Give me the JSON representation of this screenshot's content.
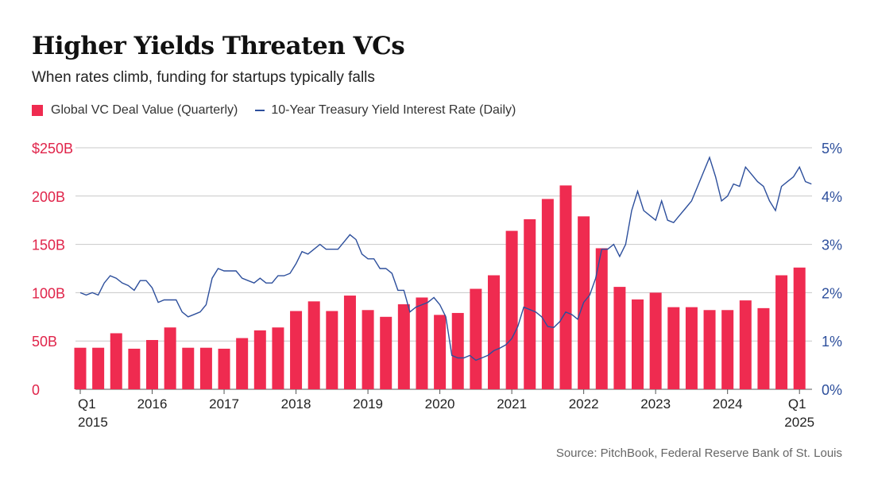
{
  "title": "Higher Yields Threaten VCs",
  "subtitle": "When rates climb, funding for startups typically falls",
  "source": "Source: PitchBook, Federal Reserve Bank of St. Louis",
  "colors": {
    "bar": "#ef2b50",
    "line": "#2d4f9c",
    "grid": "#c8c8c8",
    "left_axis": "#e0244a",
    "right_axis": "#2d4f9c"
  },
  "chart_data": {
    "type": "bar+line",
    "title": "Higher Yields Threaten VCs",
    "legend": [
      "Global VC Deal Value (Quarterly)",
      "10-Year Treasury Yield Interest Rate (Daily)"
    ],
    "legend_position": "top-left",
    "grid": true,
    "left_axis": {
      "ticks": [
        "0",
        "50B",
        "100B",
        "150B",
        "200B",
        "$250B"
      ],
      "values": [
        0,
        50,
        100,
        150,
        200,
        250
      ],
      "ylim": [
        0,
        250
      ],
      "unit": "$B"
    },
    "right_axis": {
      "ticks": [
        "0%",
        "1%",
        "2%",
        "3%",
        "4%",
        "5%"
      ],
      "values": [
        0,
        1,
        2,
        3,
        4,
        5
      ],
      "ylim": [
        0,
        5
      ],
      "unit": "%"
    },
    "x_ticks": [
      {
        "label": "Q1",
        "label2": "2015",
        "q": 0
      },
      {
        "label": "2016",
        "q": 4
      },
      {
        "label": "2017",
        "q": 8
      },
      {
        "label": "2018",
        "q": 12
      },
      {
        "label": "2019",
        "q": 16
      },
      {
        "label": "2020",
        "q": 20
      },
      {
        "label": "2021",
        "q": 24
      },
      {
        "label": "2022",
        "q": 28
      },
      {
        "label": "2023",
        "q": 32
      },
      {
        "label": "2024",
        "q": 36
      },
      {
        "label": "Q1",
        "label2": "2025",
        "q": 40
      }
    ],
    "bar_series": {
      "name": "Global VC Deal Value (Quarterly)",
      "start": "2015 Q1",
      "values": [
        43,
        43,
        58,
        42,
        51,
        64,
        43,
        43,
        42,
        53,
        61,
        64,
        81,
        91,
        81,
        97,
        82,
        75,
        88,
        95,
        77,
        79,
        104,
        118,
        164,
        176,
        197,
        211,
        179,
        146,
        106,
        93,
        100,
        85,
        85,
        82,
        82,
        92,
        84,
        118,
        126
      ]
    },
    "line_series": {
      "name": "10-Year Treasury Yield Interest Rate (Daily)",
      "start": "2015-01",
      "sampling": "monthly approx",
      "values": [
        2.0,
        1.95,
        2.0,
        1.95,
        2.2,
        2.35,
        2.3,
        2.2,
        2.15,
        2.05,
        2.25,
        2.25,
        2.1,
        1.8,
        1.85,
        1.85,
        1.85,
        1.6,
        1.5,
        1.55,
        1.6,
        1.75,
        2.3,
        2.5,
        2.45,
        2.45,
        2.45,
        2.3,
        2.25,
        2.2,
        2.3,
        2.2,
        2.2,
        2.35,
        2.35,
        2.4,
        2.6,
        2.85,
        2.8,
        2.9,
        3.0,
        2.9,
        2.9,
        2.9,
        3.05,
        3.2,
        3.1,
        2.8,
        2.7,
        2.7,
        2.5,
        2.5,
        2.4,
        2.05,
        2.05,
        1.6,
        1.7,
        1.75,
        1.8,
        1.9,
        1.75,
        1.5,
        0.7,
        0.65,
        0.65,
        0.7,
        0.6,
        0.65,
        0.7,
        0.8,
        0.85,
        0.92,
        1.05,
        1.3,
        1.7,
        1.65,
        1.6,
        1.5,
        1.3,
        1.28,
        1.4,
        1.6,
        1.55,
        1.45,
        1.8,
        1.95,
        2.3,
        2.9,
        2.9,
        3.0,
        2.75,
        3.0,
        3.7,
        4.1,
        3.7,
        3.6,
        3.5,
        3.9,
        3.5,
        3.45,
        3.6,
        3.75,
        3.9,
        4.2,
        4.5,
        4.8,
        4.4,
        3.9,
        4.0,
        4.25,
        4.2,
        4.6,
        4.45,
        4.3,
        4.2,
        3.9,
        3.7,
        4.2,
        4.3,
        4.4,
        4.6,
        4.3,
        4.25
      ]
    }
  }
}
